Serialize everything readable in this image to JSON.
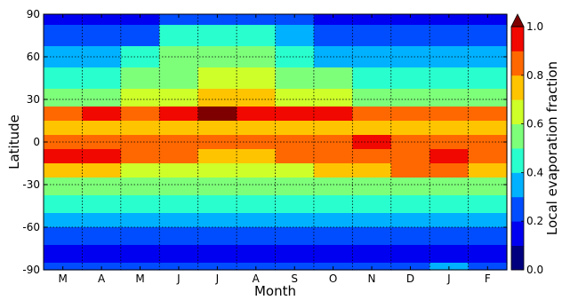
{
  "chart_data": {
    "type": "heatmap",
    "xlabel": "Month",
    "ylabel": "Latitude",
    "x_categories": [
      "M",
      "A",
      "M",
      "J",
      "J",
      "A",
      "S",
      "O",
      "N",
      "D",
      "J",
      "F"
    ],
    "y_ticks": [
      90,
      60,
      30,
      0,
      -30,
      -60,
      -90
    ],
    "ylim": [
      -90,
      90
    ],
    "grid": true,
    "colorbar": {
      "label": "Local evaporation fraction",
      "ticks": [
        "0.0",
        "0.2",
        "0.4",
        "0.6",
        "0.8",
        "1.0"
      ],
      "range": [
        0.0,
        1.0
      ],
      "levels": [
        0.0,
        0.1,
        0.2,
        0.3,
        0.4,
        0.5,
        0.6,
        0.7,
        0.8,
        0.9,
        1.0
      ],
      "colors": [
        "#00007f",
        "#0000f1",
        "#004dff",
        "#00b1ff",
        "#29ffce",
        "#7dff7a",
        "#ceff29",
        "#ffc400",
        "#ff6800",
        "#f10800",
        "#7f0000"
      ],
      "extend": "max"
    },
    "latitude_profile": [
      {
        "lat": 90,
        "values": [
          0.1,
          0.1,
          0.1,
          0.2,
          0.2,
          0.2,
          0.2,
          0.1,
          0.1,
          0.1,
          0.1,
          0.1
        ]
      },
      {
        "lat": 75,
        "values": [
          0.2,
          0.2,
          0.2,
          0.4,
          0.4,
          0.4,
          0.3,
          0.2,
          0.2,
          0.2,
          0.2,
          0.2
        ]
      },
      {
        "lat": 60,
        "values": [
          0.3,
          0.3,
          0.4,
          0.5,
          0.5,
          0.5,
          0.4,
          0.3,
          0.3,
          0.3,
          0.3,
          0.3
        ]
      },
      {
        "lat": 45,
        "values": [
          0.4,
          0.4,
          0.5,
          0.5,
          0.6,
          0.6,
          0.5,
          0.5,
          0.4,
          0.4,
          0.4,
          0.4
        ]
      },
      {
        "lat": 30,
        "values": [
          0.5,
          0.5,
          0.6,
          0.6,
          0.7,
          0.7,
          0.6,
          0.6,
          0.5,
          0.5,
          0.5,
          0.5
        ]
      },
      {
        "lat": 20,
        "values": [
          0.8,
          0.9,
          0.8,
          0.9,
          1.0,
          0.9,
          0.9,
          0.9,
          0.8,
          0.8,
          0.8,
          0.8
        ]
      },
      {
        "lat": 10,
        "values": [
          0.7,
          0.7,
          0.7,
          0.7,
          0.7,
          0.7,
          0.7,
          0.7,
          0.7,
          0.7,
          0.7,
          0.7
        ]
      },
      {
        "lat": 0,
        "values": [
          0.8,
          0.8,
          0.8,
          0.8,
          0.8,
          0.8,
          0.8,
          0.8,
          0.9,
          0.8,
          0.8,
          0.8
        ]
      },
      {
        "lat": -10,
        "values": [
          0.9,
          0.9,
          0.8,
          0.8,
          0.7,
          0.7,
          0.8,
          0.8,
          0.8,
          0.8,
          0.9,
          0.8
        ]
      },
      {
        "lat": -20,
        "values": [
          0.7,
          0.7,
          0.6,
          0.6,
          0.6,
          0.6,
          0.6,
          0.7,
          0.7,
          0.8,
          0.8,
          0.7
        ]
      },
      {
        "lat": -30,
        "values": [
          0.5,
          0.5,
          0.5,
          0.5,
          0.5,
          0.5,
          0.5,
          0.5,
          0.5,
          0.5,
          0.5,
          0.5
        ]
      },
      {
        "lat": -45,
        "values": [
          0.4,
          0.4,
          0.4,
          0.4,
          0.4,
          0.4,
          0.4,
          0.4,
          0.4,
          0.4,
          0.4,
          0.4
        ]
      },
      {
        "lat": -55,
        "values": [
          0.3,
          0.3,
          0.3,
          0.3,
          0.3,
          0.3,
          0.3,
          0.3,
          0.3,
          0.3,
          0.3,
          0.3
        ]
      },
      {
        "lat": -65,
        "values": [
          0.2,
          0.2,
          0.2,
          0.2,
          0.2,
          0.2,
          0.2,
          0.2,
          0.2,
          0.2,
          0.2,
          0.2
        ]
      },
      {
        "lat": -80,
        "values": [
          0.1,
          0.1,
          0.1,
          0.1,
          0.1,
          0.1,
          0.1,
          0.1,
          0.1,
          0.1,
          0.1,
          0.1
        ]
      },
      {
        "lat": -90,
        "values": [
          0.2,
          0.2,
          0.2,
          0.2,
          0.2,
          0.2,
          0.2,
          0.2,
          0.2,
          0.2,
          0.3,
          0.2
        ]
      }
    ]
  }
}
